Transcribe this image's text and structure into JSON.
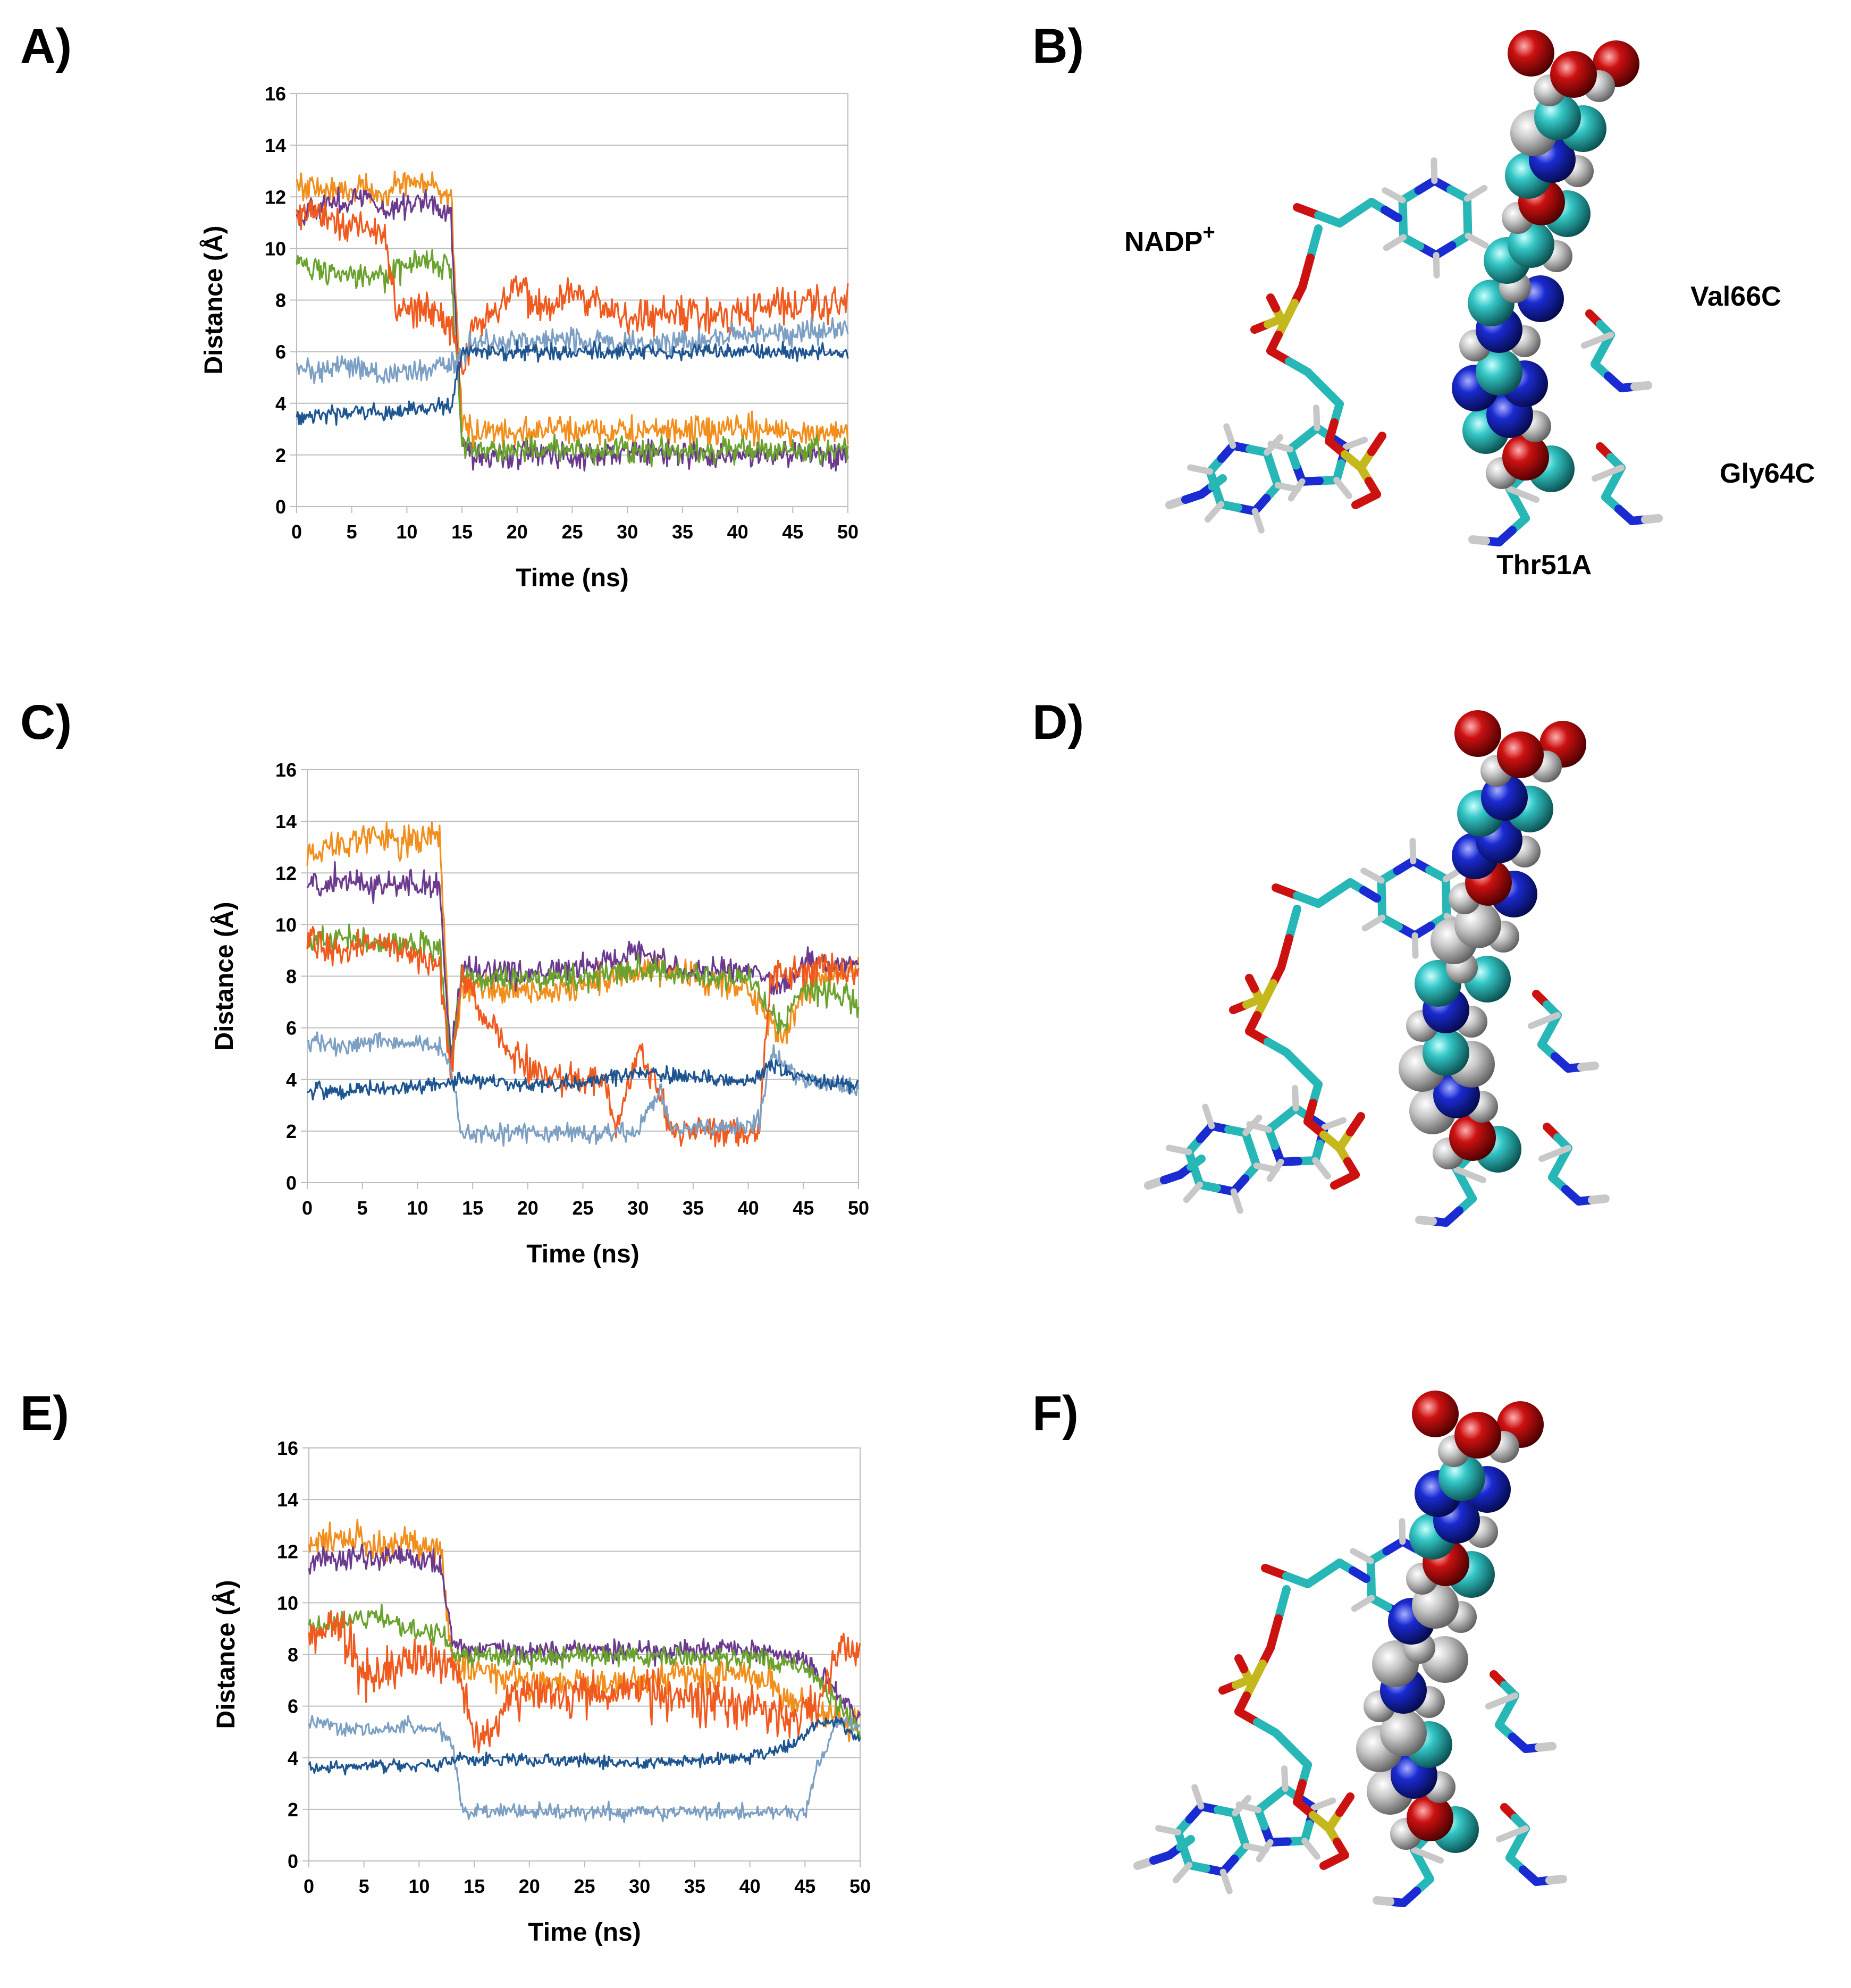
{
  "figure": {
    "panel_letters": [
      "A)",
      "B)",
      "C)",
      "D)",
      "E)",
      "F)"
    ],
    "molecule_labels": {
      "nadp": "NADP",
      "nadp_charge": "+",
      "val": "Val66C",
      "gly": "Gly64C",
      "thr": "Thr51A"
    }
  },
  "series_colors": [
    "#f28e1c",
    "#6b3a8f",
    "#6aa22e",
    "#f05a1e",
    "#7c9fc4",
    "#1e5591"
  ],
  "atom_colors": {
    "carbon": "#27b7b7",
    "oxygen": "#cc1111",
    "nitrogen": "#1a2bd1",
    "hydrogen": "#c8c8c8",
    "phosphorus": "#c4b81d"
  },
  "chart_data": [
    {
      "type": "line",
      "panel": "A)",
      "title": "",
      "xlabel": "Time (ns)",
      "ylabel": "Distance (Å)",
      "xlim": [
        0,
        50
      ],
      "ylim": [
        0,
        16
      ],
      "xticks": [
        0,
        5,
        10,
        15,
        20,
        25,
        30,
        35,
        40,
        45,
        50
      ],
      "yticks": [
        0,
        2,
        4,
        6,
        8,
        10,
        12,
        14,
        16
      ],
      "grid": "horizontal",
      "series": [
        {
          "name": "orange",
          "color": "#f28e1c",
          "x": [
            0,
            2,
            4,
            6,
            8,
            10,
            12,
            14,
            15,
            16,
            20,
            25,
            30,
            35,
            40,
            45,
            50
          ],
          "y": [
            12.5,
            12.3,
            12.2,
            12.4,
            12.1,
            12.6,
            12.5,
            12.0,
            3.2,
            2.9,
            2.9,
            3.0,
            2.9,
            2.9,
            3.0,
            2.9,
            2.9
          ],
          "noise": 0.55
        },
        {
          "name": "purple",
          "color": "#6b3a8f",
          "x": [
            0,
            2,
            4,
            6,
            8,
            10,
            12,
            14,
            15,
            16,
            20,
            25,
            30,
            35,
            40,
            45,
            50
          ],
          "y": [
            11.3,
            11.6,
            11.8,
            12.0,
            11.5,
            11.7,
            11.9,
            11.2,
            2.5,
            2.0,
            2.0,
            2.0,
            2.1,
            2.0,
            2.0,
            2.0,
            2.0
          ],
          "noise": 0.5
        },
        {
          "name": "green",
          "color": "#6aa22e",
          "x": [
            0,
            2,
            4,
            6,
            8,
            10,
            12,
            14,
            15,
            16,
            20,
            25,
            30,
            35,
            40,
            45,
            50
          ],
          "y": [
            9.5,
            9.2,
            9.0,
            8.8,
            8.9,
            9.3,
            9.5,
            9.2,
            2.6,
            2.2,
            2.2,
            2.2,
            2.2,
            2.2,
            2.2,
            2.2,
            2.2
          ],
          "noise": 0.5
        },
        {
          "name": "red-orange",
          "color": "#f05a1e",
          "x": [
            0,
            2,
            4,
            6,
            8,
            9,
            10,
            12,
            14,
            15,
            16,
            18,
            20,
            22,
            25,
            30,
            35,
            40,
            45,
            50
          ],
          "y": [
            11.2,
            11.5,
            10.8,
            11.0,
            10.5,
            7.8,
            7.7,
            7.6,
            7.0,
            5.2,
            6.9,
            7.5,
            8.6,
            7.8,
            8.2,
            7.3,
            7.5,
            7.5,
            7.8,
            8.0
          ],
          "noise": 0.7
        },
        {
          "name": "light-blue",
          "color": "#7c9fc4",
          "x": [
            0,
            2,
            4,
            6,
            8,
            10,
            12,
            14,
            15,
            16,
            20,
            25,
            30,
            35,
            40,
            45,
            50
          ],
          "y": [
            5.5,
            5.2,
            5.5,
            5.3,
            5.0,
            5.2,
            5.3,
            5.5,
            5.8,
            6.3,
            6.4,
            6.5,
            6.3,
            6.4,
            6.6,
            6.7,
            6.9
          ],
          "noise": 0.45
        },
        {
          "name": "dark-blue",
          "color": "#1e5591",
          "x": [
            0,
            2,
            4,
            6,
            8,
            10,
            12,
            14,
            15,
            16,
            20,
            25,
            30,
            35,
            40,
            45,
            50
          ],
          "y": [
            3.5,
            3.6,
            3.6,
            3.7,
            3.6,
            3.7,
            3.8,
            3.9,
            6.0,
            6.0,
            6.0,
            6.0,
            6.0,
            6.0,
            6.0,
            6.0,
            6.0
          ],
          "noise": 0.3
        }
      ]
    },
    {
      "type": "line",
      "panel": "C)",
      "title": "",
      "xlabel": "Time (ns)",
      "ylabel": "Distance (Å)",
      "xlim": [
        0,
        50
      ],
      "ylim": [
        0,
        16
      ],
      "xticks": [
        0,
        5,
        10,
        15,
        20,
        25,
        30,
        35,
        40,
        45,
        50
      ],
      "yticks": [
        0,
        2,
        4,
        6,
        8,
        10,
        12,
        14,
        16
      ],
      "grid": "horizontal",
      "series": [
        {
          "name": "orange",
          "color": "#f28e1c",
          "x": [
            0,
            3,
            6,
            9,
            12,
            13,
            14,
            20,
            25,
            30,
            35,
            40,
            43,
            45,
            50
          ],
          "y": [
            12.8,
            13.2,
            13.4,
            13.2,
            13.4,
            4.5,
            7.5,
            7.4,
            7.6,
            8.2,
            8.0,
            7.5,
            5.5,
            7.5,
            8.5
          ],
          "noise": 0.6
        },
        {
          "name": "purple",
          "color": "#6b3a8f",
          "x": [
            0,
            3,
            6,
            9,
            12,
            13,
            14,
            20,
            25,
            30,
            35,
            40,
            43,
            45,
            50
          ],
          "y": [
            11.5,
            11.8,
            11.5,
            11.6,
            11.4,
            4.8,
            8.2,
            8.1,
            8.3,
            9.0,
            8.2,
            8.3,
            7.5,
            8.5,
            8.5
          ],
          "noise": 0.5
        },
        {
          "name": "green",
          "color": "#6aa22e",
          "x": [
            0,
            3,
            6,
            9,
            12,
            13,
            14,
            20,
            25,
            30,
            35,
            40,
            43,
            45,
            50
          ],
          "y": [
            9.3,
            9.5,
            9.2,
            9.3,
            9.0,
            4.5,
            8.0,
            7.8,
            8.0,
            8.3,
            8.0,
            7.9,
            6.0,
            7.5,
            7.0
          ],
          "noise": 0.5
        },
        {
          "name": "red-orange",
          "color": "#f05a1e",
          "x": [
            0,
            3,
            6,
            9,
            12,
            13,
            14,
            18,
            20,
            22,
            25,
            27,
            28,
            30,
            32,
            33,
            36,
            40,
            41,
            42,
            45,
            50
          ],
          "y": [
            9.5,
            9.0,
            9.3,
            8.9,
            8.5,
            4.2,
            8.0,
            5.2,
            4.5,
            4.0,
            4.0,
            4.0,
            2.0,
            5.0,
            3.5,
            2.0,
            2.0,
            2.0,
            2.0,
            8.0,
            8.2,
            8.2
          ],
          "noise": 0.6
        },
        {
          "name": "light-blue",
          "color": "#7c9fc4",
          "x": [
            0,
            3,
            6,
            9,
            12,
            13,
            14,
            20,
            25,
            30,
            32,
            33,
            35,
            40,
            41,
            42,
            45,
            50
          ],
          "y": [
            5.5,
            5.3,
            5.5,
            5.4,
            5.3,
            4.5,
            1.9,
            1.9,
            1.9,
            2.0,
            3.6,
            2.2,
            2.1,
            2.2,
            2.5,
            5.0,
            4.0,
            3.7
          ],
          "noise": 0.35
        },
        {
          "name": "dark-blue",
          "color": "#1e5591",
          "x": [
            0,
            3,
            6,
            9,
            12,
            13,
            14,
            20,
            25,
            30,
            35,
            40,
            42,
            45,
            50
          ],
          "y": [
            3.6,
            3.5,
            3.7,
            3.7,
            3.8,
            3.9,
            4.0,
            3.8,
            3.9,
            4.3,
            4.1,
            3.9,
            4.5,
            4.0,
            3.8
          ],
          "noise": 0.3
        }
      ]
    },
    {
      "type": "line",
      "panel": "E)",
      "title": "",
      "xlabel": "Time (ns)",
      "ylabel": "Distance (Å)",
      "xlim": [
        0,
        50
      ],
      "ylim": [
        0,
        16
      ],
      "xticks": [
        0,
        5,
        10,
        15,
        20,
        25,
        30,
        35,
        40,
        45,
        50
      ],
      "yticks": [
        0,
        2,
        4,
        6,
        8,
        10,
        12,
        14,
        16
      ],
      "grid": "horizontal",
      "series": [
        {
          "name": "orange",
          "color": "#f28e1c",
          "x": [
            0,
            3,
            6,
            9,
            12,
            13,
            14,
            20,
            25,
            30,
            35,
            40,
            45,
            48,
            50
          ],
          "y": [
            12.3,
            12.5,
            12.2,
            12.4,
            12.0,
            7.8,
            7.5,
            7.0,
            6.8,
            7.0,
            7.2,
            7.3,
            6.0,
            5.5,
            5.2
          ],
          "noise": 0.6
        },
        {
          "name": "purple",
          "color": "#6b3a8f",
          "x": [
            0,
            3,
            6,
            9,
            12,
            13,
            14,
            20,
            25,
            30,
            35,
            40,
            45,
            48,
            50
          ],
          "y": [
            11.5,
            11.8,
            11.7,
            11.8,
            11.5,
            8.5,
            8.2,
            8.1,
            8.2,
            8.1,
            8.2,
            8.2,
            7.8,
            6.5,
            5.5
          ],
          "noise": 0.45
        },
        {
          "name": "green",
          "color": "#6aa22e",
          "x": [
            0,
            3,
            6,
            9,
            12,
            13,
            14,
            20,
            25,
            30,
            35,
            40,
            45,
            48,
            50
          ],
          "y": [
            9.0,
            9.3,
            9.5,
            9.0,
            8.8,
            8.2,
            8.0,
            7.9,
            8.0,
            7.9,
            7.9,
            7.9,
            7.5,
            6.0,
            5.2
          ],
          "noise": 0.4
        },
        {
          "name": "red-orange",
          "color": "#f05a1e",
          "x": [
            0,
            3,
            5,
            7,
            9,
            12,
            13,
            14,
            15,
            18,
            20,
            25,
            30,
            35,
            40,
            44,
            46,
            48,
            50
          ],
          "y": [
            8.8,
            9.0,
            7.2,
            7.5,
            7.8,
            7.6,
            7.5,
            7.0,
            4.5,
            6.2,
            6.3,
            6.4,
            6.5,
            6.3,
            6.0,
            5.5,
            6.0,
            8.0,
            8.0
          ],
          "noise": 0.9
        },
        {
          "name": "light-blue",
          "color": "#7c9fc4",
          "x": [
            0,
            3,
            6,
            9,
            12,
            13,
            14,
            20,
            25,
            30,
            35,
            40,
            44,
            45,
            46,
            48,
            50
          ],
          "y": [
            5.4,
            5.2,
            5.0,
            5.2,
            5.0,
            4.5,
            1.9,
            1.9,
            1.9,
            1.9,
            1.9,
            1.9,
            1.9,
            1.8,
            3.5,
            5.5,
            5.2
          ],
          "noise": 0.3
        },
        {
          "name": "dark-blue",
          "color": "#1e5591",
          "x": [
            0,
            3,
            6,
            9,
            12,
            13,
            14,
            20,
            25,
            30,
            35,
            40,
            44,
            46,
            48,
            50
          ],
          "y": [
            3.6,
            3.6,
            3.7,
            3.7,
            3.8,
            3.9,
            4.0,
            3.9,
            3.9,
            3.8,
            3.9,
            4.0,
            4.5,
            5.3,
            5.4,
            4.6
          ],
          "noise": 0.25
        }
      ]
    }
  ]
}
